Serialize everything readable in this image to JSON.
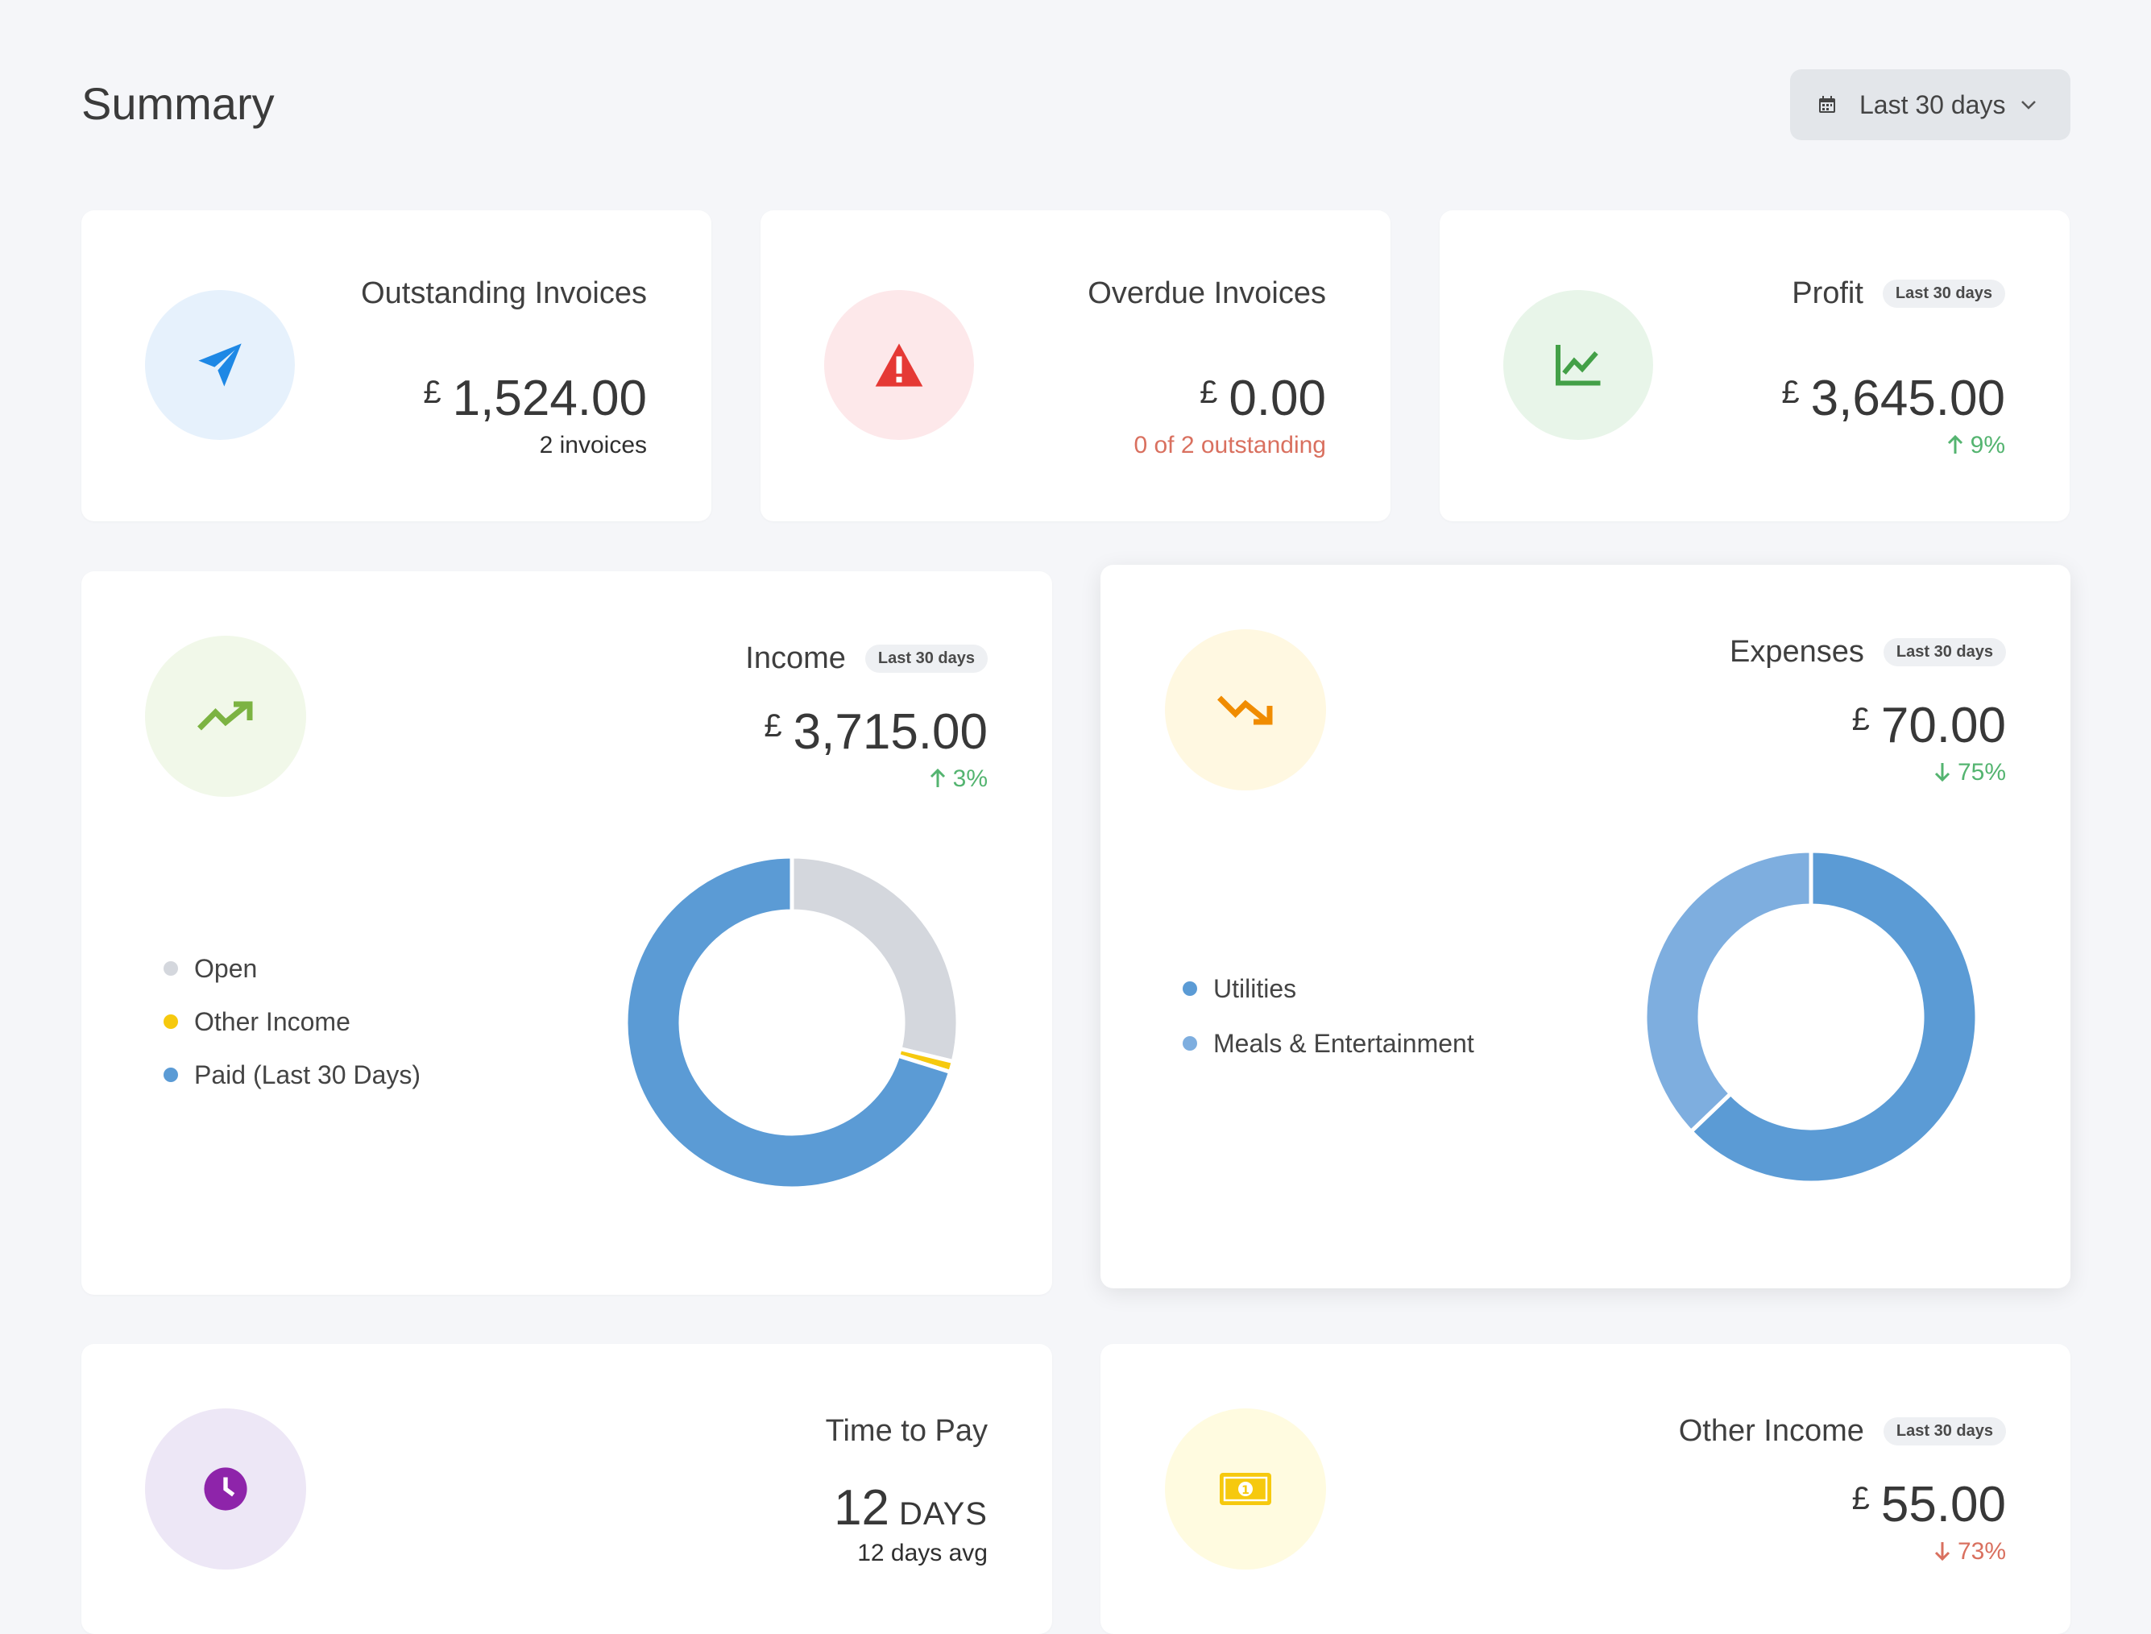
{
  "page": {
    "title": "Summary"
  },
  "date_range": {
    "label": "Last 30 days",
    "icon": "calendar-icon"
  },
  "cards": {
    "outstanding": {
      "title": "Outstanding Invoices",
      "currency": "£",
      "amount": "1,524.00",
      "sub": "2 invoices",
      "icon": "paper-plane-icon",
      "accent": "#1e88e5",
      "bg": "#e6f1fc"
    },
    "overdue": {
      "title": "Overdue Invoices",
      "currency": "£",
      "amount": "0.00",
      "sub": "0 of 2 outstanding",
      "icon": "warning-icon",
      "accent": "#e53935",
      "bg": "#fde8ea"
    },
    "profit": {
      "title": "Profit",
      "badge": "Last 30 days",
      "currency": "£",
      "amount": "3,645.00",
      "change": "9%",
      "trend": "up",
      "icon": "line-chart-icon",
      "accent": "#43a047",
      "bg": "#e8f5e9"
    },
    "income": {
      "title": "Income",
      "badge": "Last 30 days",
      "currency": "£",
      "amount": "3,715.00",
      "change": "3%",
      "trend": "up",
      "icon": "trending-up-icon",
      "accent": "#7cb342",
      "bg": "#f1f8e9",
      "legend": [
        {
          "label": "Open",
          "color": "#d4d7dd"
        },
        {
          "label": "Other Income",
          "color": "#f6c90e"
        },
        {
          "label": "Paid (Last 30 Days)",
          "color": "#5b9bd5"
        }
      ]
    },
    "expenses": {
      "title": "Expenses",
      "badge": "Last 30 days",
      "currency": "£",
      "amount": "70.00",
      "change": "75%",
      "trend": "down",
      "icon": "trending-down-icon",
      "accent": "#f08c00",
      "bg": "#fff8e1",
      "legend": [
        {
          "label": "Utilities",
          "color": "#5b9bd5"
        },
        {
          "label": "Meals & Entertainment",
          "color": "#7eaedf"
        }
      ]
    },
    "time_to_pay": {
      "title": "Time to Pay",
      "value": "12",
      "unit": "DAYS",
      "sub": "12 days avg",
      "icon": "clock-icon",
      "accent": "#8e24aa",
      "bg": "#ede7f6"
    },
    "other_income": {
      "title": "Other Income",
      "badge": "Last 30 days",
      "currency": "£",
      "amount": "55.00",
      "change": "73%",
      "trend": "down",
      "icon": "banknote-icon",
      "accent": "#f6c90e",
      "bg": "#fffbe0"
    }
  },
  "chart_data": [
    {
      "type": "pie",
      "categories": [
        "Open",
        "Other Income",
        "Paid (Last 30 Days)"
      ],
      "values": [
        1524,
        55,
        3715
      ],
      "colors": [
        "#d4d7dd",
        "#f6c90e",
        "#5b9bd5"
      ]
    },
    {
      "type": "pie",
      "categories": [
        "Utilities",
        "Meals & Entertainment"
      ],
      "values": [
        44,
        26
      ],
      "colors": [
        "#5b9bd5",
        "#7eaedf"
      ]
    }
  ]
}
